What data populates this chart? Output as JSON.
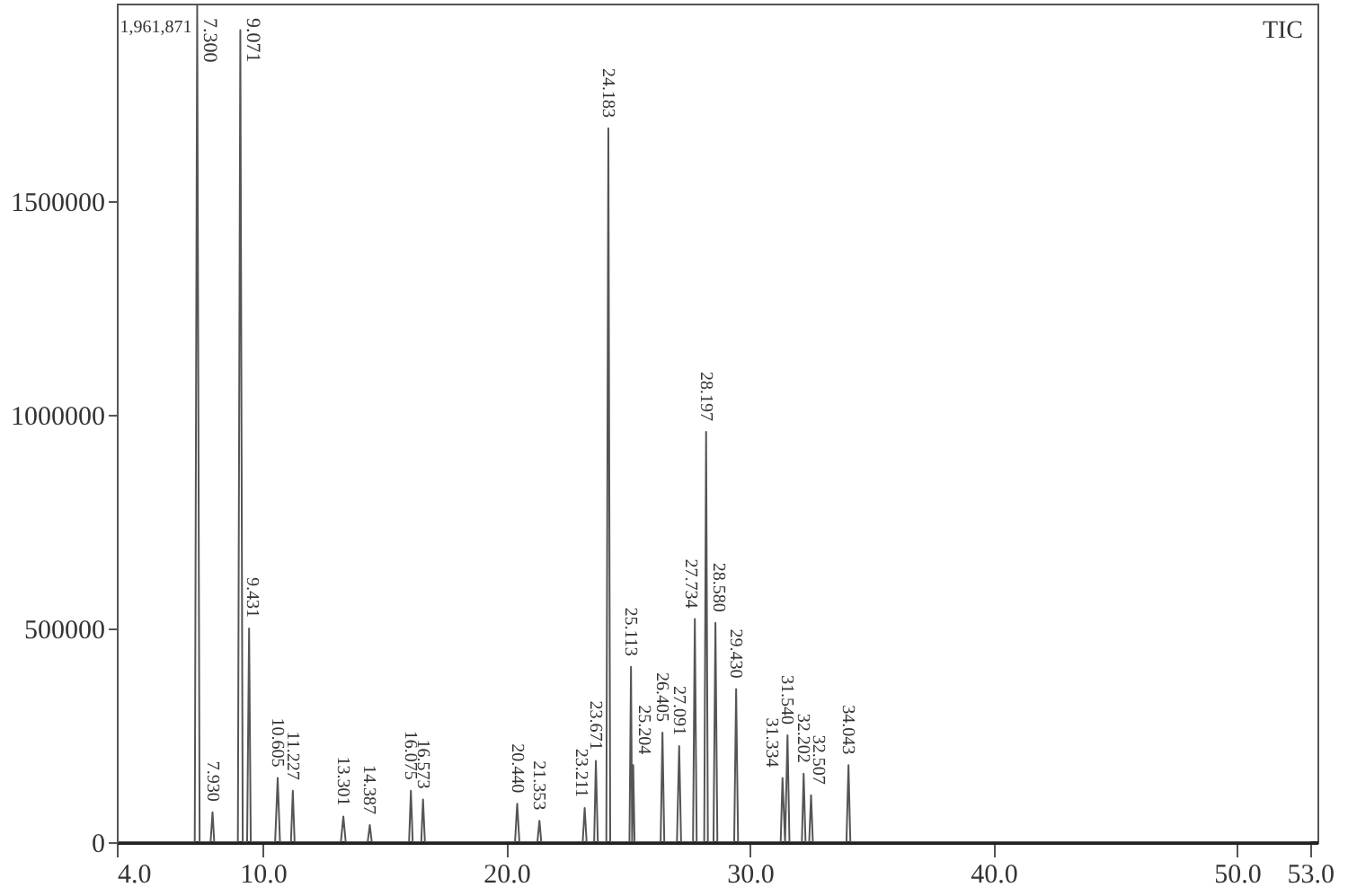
{
  "chart_data": {
    "type": "line",
    "x": [
      4.0,
      7.2,
      7.3,
      7.4,
      7.85,
      7.93,
      8.0,
      8.97,
      9.071,
      9.17,
      9.35,
      9.431,
      9.5,
      10.5,
      10.605,
      10.7,
      11.15,
      11.227,
      11.3,
      13.2,
      13.301,
      13.4,
      14.3,
      14.387,
      14.47,
      16.0,
      16.075,
      16.15,
      16.5,
      16.573,
      16.65,
      20.35,
      20.44,
      20.53,
      21.27,
      21.353,
      21.43,
      23.13,
      23.211,
      23.29,
      23.6,
      23.671,
      23.75,
      24.1,
      24.183,
      24.26,
      25.05,
      25.113,
      25.16,
      25.204,
      25.26,
      26.33,
      26.405,
      26.48,
      27.0,
      27.091,
      27.17,
      27.66,
      27.734,
      27.81,
      28.12,
      28.197,
      28.27,
      28.5,
      28.58,
      28.66,
      29.35,
      29.43,
      29.51,
      31.26,
      31.334,
      31.44,
      31.54,
      31.62,
      32.13,
      32.202,
      32.28,
      32.43,
      32.507,
      32.58,
      33.96,
      34.043,
      34.12,
      53.0
    ],
    "series": [
      {
        "color": "#555555",
        "values": [
          0,
          0,
          1961871,
          0,
          0,
          70000,
          0,
          0,
          1900000,
          0,
          0,
          500000,
          0,
          0,
          150000,
          0,
          0,
          120000,
          0,
          0,
          60000,
          0,
          0,
          40000,
          0,
          0,
          120000,
          0,
          0,
          100000,
          0,
          0,
          90000,
          0,
          0,
          50000,
          0,
          0,
          80000,
          0,
          0,
          190000,
          0,
          0,
          1670000,
          0,
          0,
          410000,
          0,
          180000,
          0,
          0,
          256000,
          0,
          0,
          225000,
          0,
          0,
          522000,
          0,
          0,
          960000,
          0,
          0,
          513000,
          0,
          0,
          358000,
          0,
          0,
          150000,
          0,
          250000,
          0,
          0,
          160000,
          0,
          0,
          110000,
          0,
          0,
          180000,
          0,
          0
        ]
      }
    ],
    "xlim": [
      4.0,
      53.3
    ],
    "ylim": [
      0,
      1961871
    ],
    "xticks": [
      {
        "value": 4,
        "label": "4.0"
      },
      {
        "value": 10,
        "label": "10.0"
      },
      {
        "value": 20,
        "label": "20.0"
      },
      {
        "value": 30,
        "label": "30.0"
      },
      {
        "value": 40,
        "label": "40.0"
      },
      {
        "value": 50,
        "label": "50.0"
      },
      {
        "value": 53,
        "label": "53.0"
      }
    ],
    "yticks": [
      0,
      500000,
      1000000,
      1500000
    ],
    "grid": false,
    "legend": false,
    "annotations": [
      "1,961,871",
      "TIC",
      {
        "text": "7.300",
        "x": 7.3,
        "y": 1961871
      },
      {
        "text": "7.930",
        "x": 7.93,
        "y": 70000
      },
      {
        "text": "9.071",
        "x": 9.071,
        "y": 1900000
      },
      {
        "text": "9.431",
        "x": 9.431,
        "y": 500000
      },
      {
        "text": "10.605",
        "x": 10.605,
        "y": 150000
      },
      {
        "text": "11.227",
        "x": 11.227,
        "y": 120000
      },
      {
        "text": "13.301",
        "x": 13.301,
        "y": 60000
      },
      {
        "text": "14.387",
        "x": 14.387,
        "y": 40000
      },
      {
        "text": "16.075",
        "x": 16.075,
        "y": 120000
      },
      {
        "text": "16.573",
        "x": 16.573,
        "y": 100000
      },
      {
        "text": "20.440",
        "x": 20.44,
        "y": 90000
      },
      {
        "text": "21.353",
        "x": 21.353,
        "y": 50000
      },
      {
        "text": "23.211",
        "x": 23.211,
        "y": 80000
      },
      {
        "text": "23.671",
        "x": 23.671,
        "y": 190000
      },
      {
        "text": "24.183",
        "x": 24.183,
        "y": 1670000
      },
      {
        "text": "25.113",
        "x": 25.113,
        "y": 410000
      },
      {
        "text": "25.204",
        "x": 25.204,
        "y": 180000
      },
      {
        "text": "26.405",
        "x": 26.405,
        "y": 256000
      },
      {
        "text": "27.091",
        "x": 27.091,
        "y": 225000
      },
      {
        "text": "27.734",
        "x": 27.734,
        "y": 522000
      },
      {
        "text": "28.197",
        "x": 28.197,
        "y": 960000
      },
      {
        "text": "28.580",
        "x": 28.58,
        "y": 513000
      },
      {
        "text": "29.430",
        "x": 29.43,
        "y": 358000
      },
      {
        "text": "31.334",
        "x": 31.334,
        "y": 150000
      },
      {
        "text": "31.540",
        "x": 31.54,
        "y": 250000
      },
      {
        "text": "32.202",
        "x": 32.202,
        "y": 160000
      },
      {
        "text": "32.507",
        "x": 32.507,
        "y": 110000
      },
      {
        "text": "34.043",
        "x": 34.043,
        "y": 180000
      }
    ]
  }
}
